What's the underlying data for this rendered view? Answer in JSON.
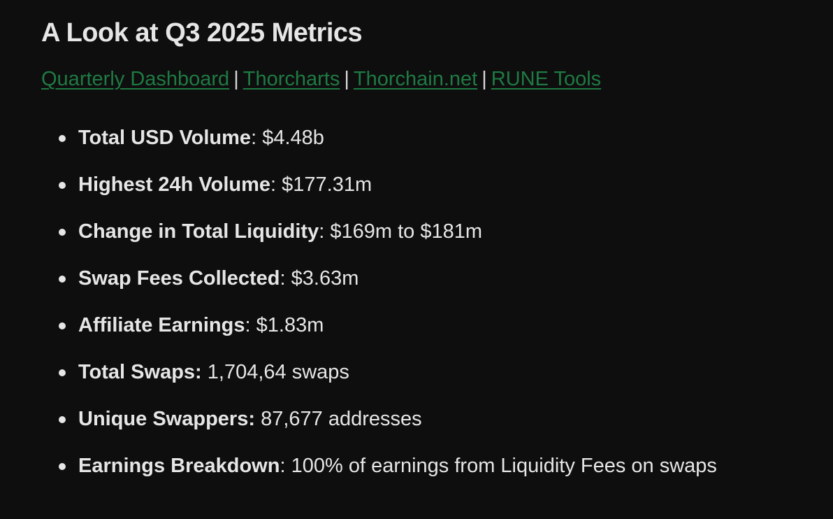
{
  "title": "A Look at Q3 2025 Metrics",
  "links": [
    {
      "label": "Quarterly Dashboard"
    },
    {
      "label": "Thorcharts"
    },
    {
      "label": "Thorchain.net"
    },
    {
      "label": "RUNE Tools"
    }
  ],
  "link_separator": "|",
  "colors": {
    "background": "#0e0e0e",
    "text": "#e6e6e6",
    "link": "#1f7a43"
  },
  "metrics": [
    {
      "label": "Total USD Volume",
      "sep": ": ",
      "value": "$4.48b"
    },
    {
      "label": "Highest 24h Volume",
      "sep": ": ",
      "value": "$177.31m"
    },
    {
      "label": "Change in Total Liquidity",
      "sep": ": ",
      "value": "$169m to $181m"
    },
    {
      "label": "Swap Fees Collected",
      "sep": ": ",
      "value": "$3.63m"
    },
    {
      "label": "Affiliate Earnings",
      "sep": ": ",
      "value": "$1.83m"
    },
    {
      "label": "Total Swaps:",
      "sep": " ",
      "value": "1,704,64 swaps"
    },
    {
      "label": "Unique Swappers:",
      "sep": " ",
      "value": "87,677 addresses"
    },
    {
      "label": "Earnings Breakdown",
      "sep": ": ",
      "value": "100% of earnings from Liquidity Fees on swaps"
    }
  ]
}
